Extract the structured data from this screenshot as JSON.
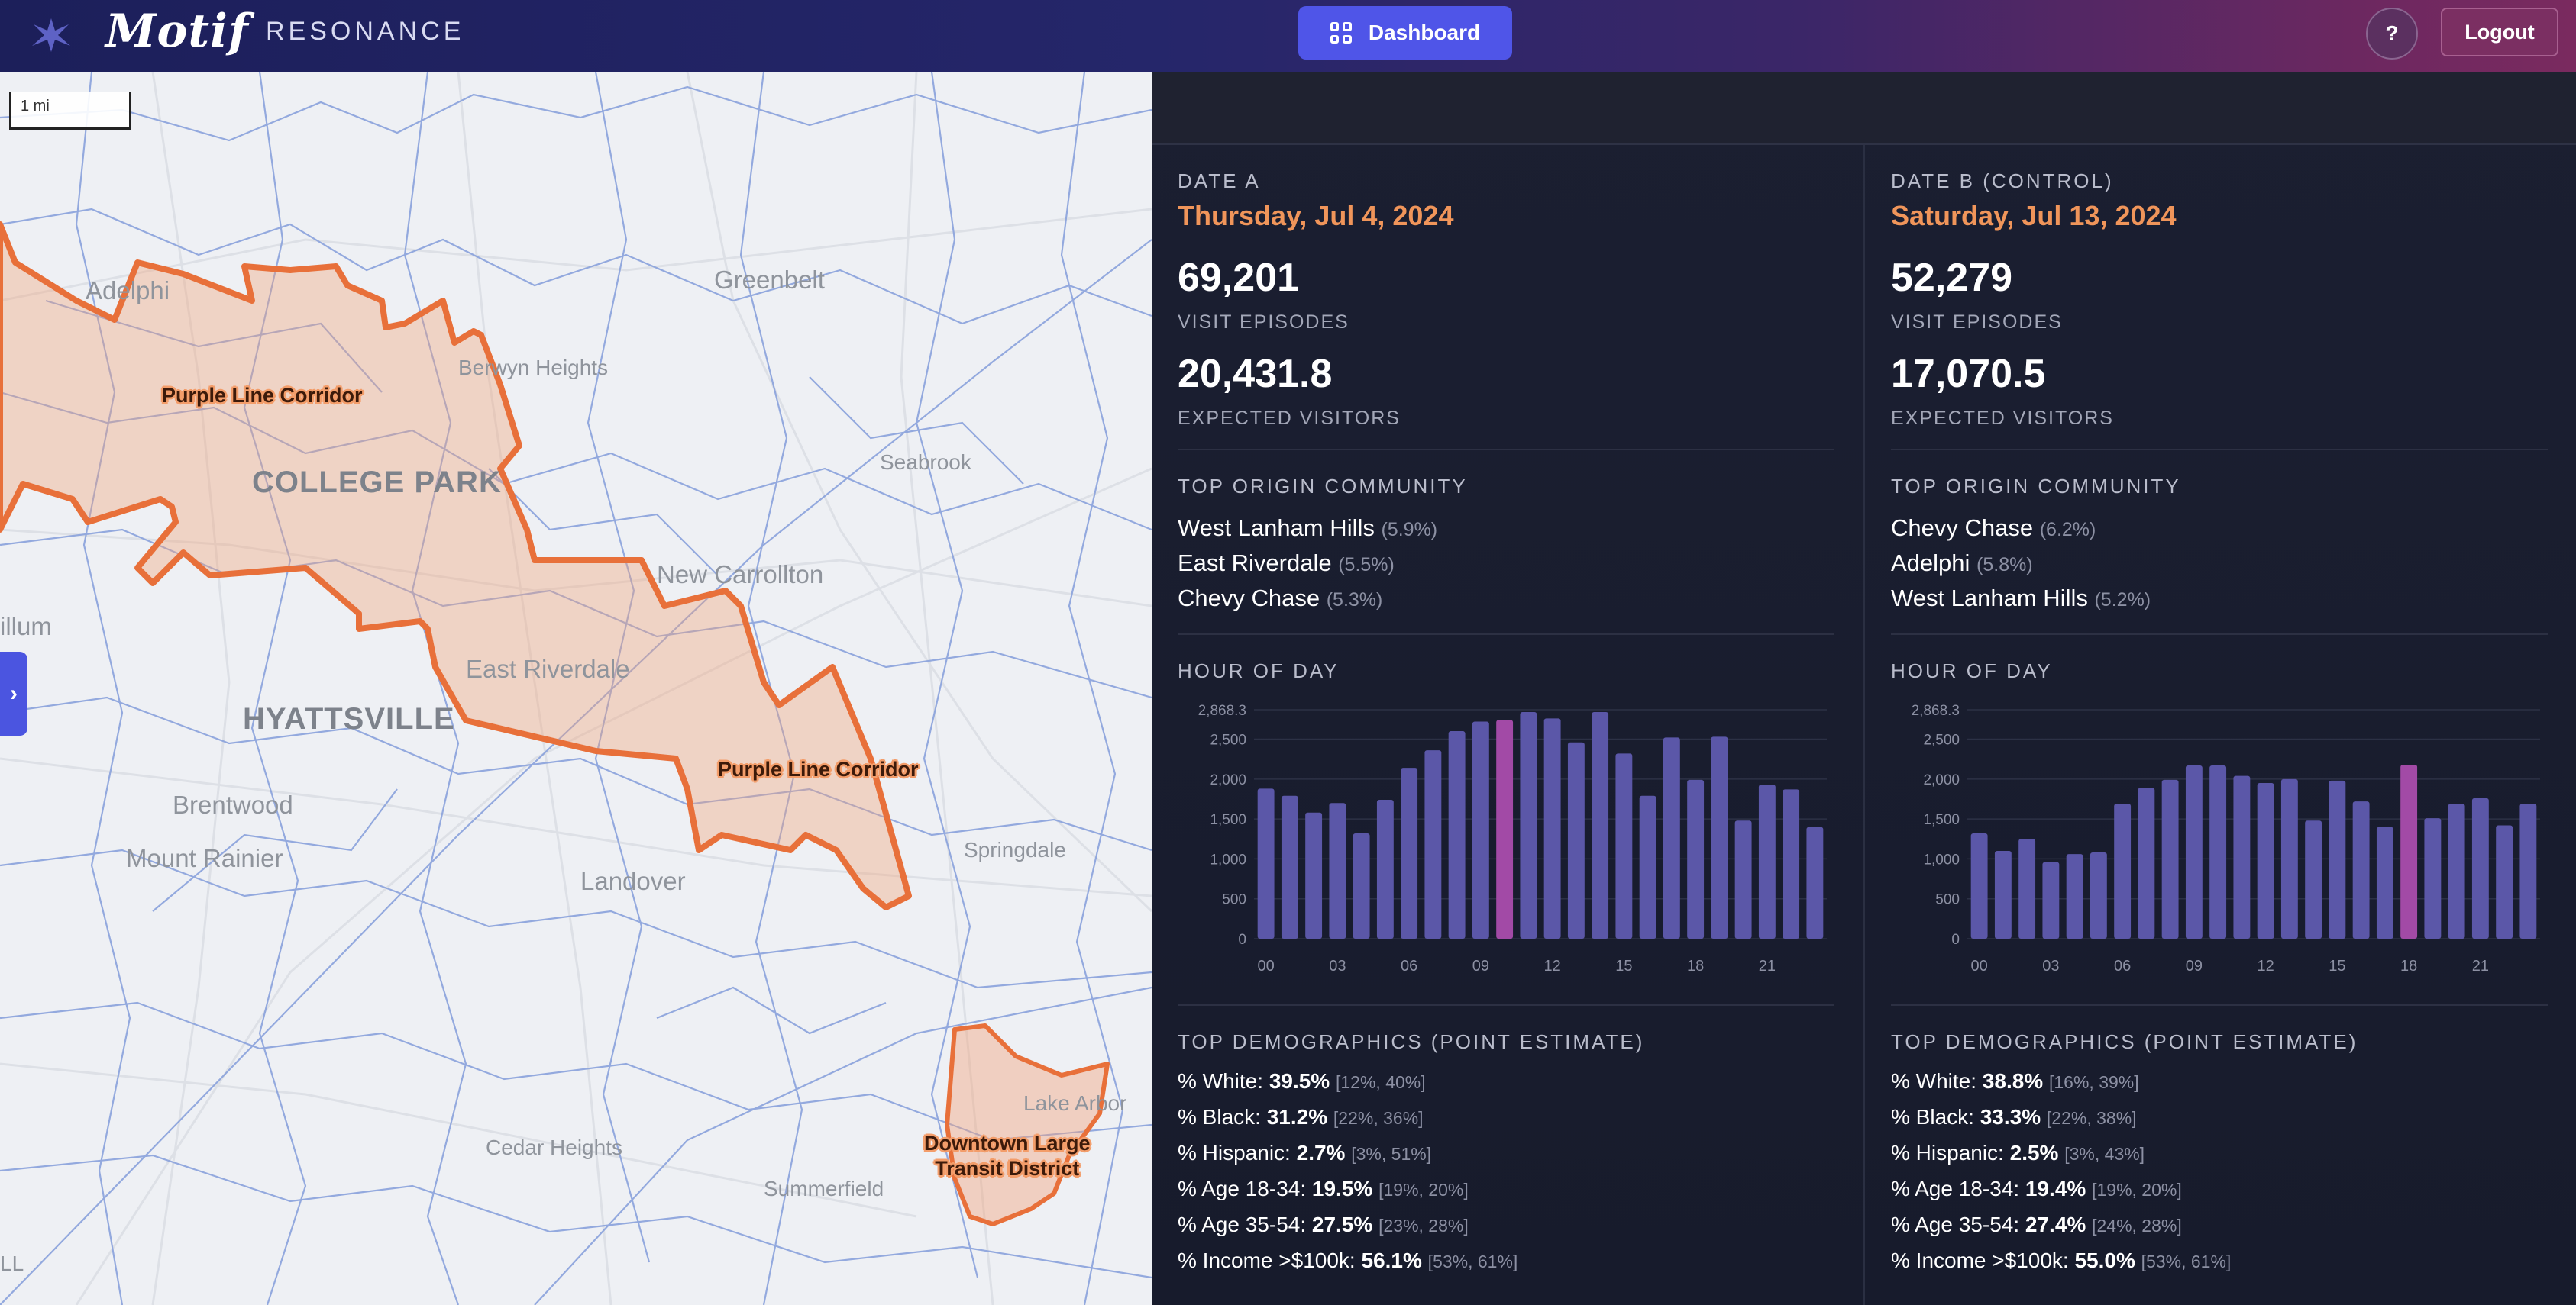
{
  "header": {
    "logo": "Motif",
    "product": "RESONANCE",
    "dashboard_label": "Dashboard",
    "help_label": "?",
    "logout_label": "Logout",
    "accent": "#4f55e8"
  },
  "map": {
    "scale_label": "1 mi",
    "places": [
      {
        "id": "adelphi",
        "name": "Adelphi",
        "size": "med"
      },
      {
        "id": "greenbelt",
        "name": "Greenbelt",
        "size": "med"
      },
      {
        "id": "berwyn",
        "name": "Berwyn Heights",
        "size": "sm"
      },
      {
        "id": "seabrook",
        "name": "Seabrook",
        "size": "sm"
      },
      {
        "id": "college-park",
        "name": "COLLEGE PARK",
        "size": "big"
      },
      {
        "id": "new-carrollton",
        "name": "New Carrollton",
        "size": "med"
      },
      {
        "id": "illum",
        "name": "illum",
        "size": "med"
      },
      {
        "id": "east-riverdale",
        "name": "East Riverdale",
        "size": "med"
      },
      {
        "id": "hyattsville",
        "name": "HYATTSVILLE",
        "size": "big"
      },
      {
        "id": "brentwood",
        "name": "Brentwood",
        "size": "med"
      },
      {
        "id": "mount-rainier",
        "name": "Mount Rainier",
        "size": "med"
      },
      {
        "id": "landover",
        "name": "Landover",
        "size": "med"
      },
      {
        "id": "springdale",
        "name": "Springdale",
        "size": "sm"
      },
      {
        "id": "lake-arbor",
        "name": "Lake Arbor",
        "size": "sm"
      },
      {
        "id": "cedar-heights",
        "name": "Cedar Heights",
        "size": "sm"
      },
      {
        "id": "summerfield",
        "name": "Summerfield",
        "size": "sm"
      },
      {
        "id": "ll",
        "name": "LL",
        "size": "sm"
      }
    ],
    "polygon_labels": {
      "corridor_1": "Purple Line Corridor",
      "corridor_2": "Purple Line Corridor",
      "downtown_1": "Downtown Large",
      "downtown_2": "Transit District"
    },
    "polygon_color": "#e8703a"
  },
  "date_a": {
    "eyebrow": "DATE A",
    "date": "Thursday, Jul 4, 2024",
    "visit_episodes": "69,201",
    "visit_episodes_label": "VISIT EPISODES",
    "expected_visitors": "20,431.8",
    "expected_visitors_label": "EXPECTED VISITORS",
    "origin_title": "TOP ORIGIN COMMUNITY",
    "origins": [
      {
        "name": "West Lanham Hills",
        "pct": "(5.9%)"
      },
      {
        "name": "East Riverdale",
        "pct": "(5.5%)"
      },
      {
        "name": "Chevy Chase",
        "pct": "(5.3%)"
      }
    ],
    "hour_title": "HOUR OF DAY",
    "demo_title": "TOP DEMOGRAPHICS (POINT ESTIMATE)",
    "demographics": [
      {
        "label": "% White:",
        "value": "39.5%",
        "ci": "[12%, 40%]"
      },
      {
        "label": "% Black:",
        "value": "31.2%",
        "ci": "[22%, 36%]"
      },
      {
        "label": "% Hispanic:",
        "value": "2.7%",
        "ci": "[3%, 51%]"
      },
      {
        "label": "% Age 18-34:",
        "value": "19.5%",
        "ci": "[19%, 20%]"
      },
      {
        "label": "% Age 35-54:",
        "value": "27.5%",
        "ci": "[23%, 28%]"
      },
      {
        "label": "% Income >$100k:",
        "value": "56.1%",
        "ci": "[53%, 61%]"
      }
    ]
  },
  "date_b": {
    "eyebrow": "DATE B (CONTROL)",
    "date": "Saturday, Jul 13, 2024",
    "visit_episodes": "52,279",
    "visit_episodes_label": "VISIT EPISODES",
    "expected_visitors": "17,070.5",
    "expected_visitors_label": "EXPECTED VISITORS",
    "origin_title": "TOP ORIGIN COMMUNITY",
    "origins": [
      {
        "name": "Chevy Chase",
        "pct": "(6.2%)"
      },
      {
        "name": "Adelphi",
        "pct": "(5.8%)"
      },
      {
        "name": "West Lanham Hills",
        "pct": "(5.2%)"
      }
    ],
    "hour_title": "HOUR OF DAY",
    "demo_title": "TOP DEMOGRAPHICS (POINT ESTIMATE)",
    "demographics": [
      {
        "label": "% White:",
        "value": "38.8%",
        "ci": "[16%, 39%]"
      },
      {
        "label": "% Black:",
        "value": "33.3%",
        "ci": "[22%, 38%]"
      },
      {
        "label": "% Hispanic:",
        "value": "2.5%",
        "ci": "[3%, 43%]"
      },
      {
        "label": "% Age 18-34:",
        "value": "19.4%",
        "ci": "[19%, 20%]"
      },
      {
        "label": "% Age 35-54:",
        "value": "27.4%",
        "ci": "[24%, 28%]"
      },
      {
        "label": "% Income >$100k:",
        "value": "55.0%",
        "ci": "[53%, 61%]"
      }
    ]
  },
  "chart_data": [
    {
      "type": "bar",
      "title": "HOUR OF DAY",
      "panel": "date_a",
      "categories": [
        0,
        1,
        2,
        3,
        4,
        5,
        6,
        7,
        8,
        9,
        10,
        11,
        12,
        13,
        14,
        15,
        16,
        17,
        18,
        19,
        20,
        21,
        22,
        23
      ],
      "tick_labels": [
        "00",
        "03",
        "06",
        "09",
        "12",
        "15",
        "18",
        "21"
      ],
      "y_tick_labels": [
        "0",
        "500",
        "1,000",
        "1,500",
        "2,000",
        "2,500",
        "2,868.3"
      ],
      "ylim": [
        0,
        2868.3
      ],
      "values": [
        1880,
        1790,
        1580,
        1700,
        1320,
        1740,
        2140,
        2360,
        2600,
        2720,
        2740,
        2840,
        2760,
        2460,
        2840,
        2320,
        1790,
        2520,
        1990,
        2530,
        1480,
        1930,
        1870,
        1400
      ],
      "highlight_index": 10,
      "bar_color": "#5b57a8",
      "highlight_color": "#a24aa6",
      "grid": true
    },
    {
      "type": "bar",
      "title": "HOUR OF DAY",
      "panel": "date_b",
      "categories": [
        0,
        1,
        2,
        3,
        4,
        5,
        6,
        7,
        8,
        9,
        10,
        11,
        12,
        13,
        14,
        15,
        16,
        17,
        18,
        19,
        20,
        21,
        22,
        23
      ],
      "tick_labels": [
        "00",
        "03",
        "06",
        "09",
        "12",
        "15",
        "18",
        "21"
      ],
      "y_tick_labels": [
        "0",
        "500",
        "1,000",
        "1,500",
        "2,000",
        "2,500",
        "2,868.3"
      ],
      "ylim": [
        0,
        2868.3
      ],
      "values": [
        1320,
        1100,
        1250,
        960,
        1060,
        1080,
        1690,
        1890,
        1990,
        2170,
        2170,
        2040,
        1950,
        2000,
        1480,
        1980,
        1720,
        1400,
        2180,
        1510,
        1690,
        1760,
        1420,
        1690
      ],
      "highlight_index": 18,
      "bar_color": "#5b57a8",
      "highlight_color": "#a24aa6",
      "grid": true
    }
  ]
}
